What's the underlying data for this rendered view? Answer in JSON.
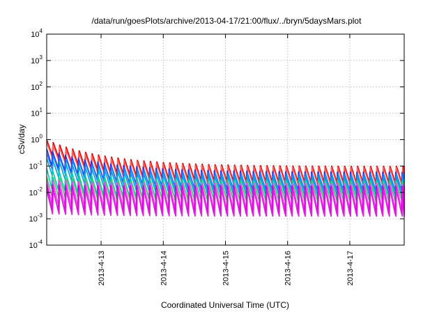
{
  "chart_data": {
    "type": "line",
    "title": "/data/run/goesPlots/archive/2013-04-17/21:00/flux/../bryn/5daysMars.plot",
    "xlabel": "Coordinated Universal Time (UTC)",
    "ylabel": "cSv/day",
    "y_scale": "log",
    "ylim": [
      0.0001,
      10000
    ],
    "y_ticks": [
      {
        "base": "10",
        "exp": "-4",
        "value": 0.0001
      },
      {
        "base": "10",
        "exp": "-3",
        "value": 0.001
      },
      {
        "base": "10",
        "exp": "-2",
        "value": 0.01
      },
      {
        "base": "10",
        "exp": "-1",
        "value": 0.1
      },
      {
        "base": "10",
        "exp": "0",
        "value": 1
      },
      {
        "base": "10",
        "exp": "1",
        "value": 10
      },
      {
        "base": "10",
        "exp": "2",
        "value": 100
      },
      {
        "base": "10",
        "exp": "3",
        "value": 1000
      },
      {
        "base": "10",
        "exp": "4",
        "value": 10000
      }
    ],
    "xlim": [
      "2013-04-12T03:00",
      "2013-04-17T21:00"
    ],
    "x_ticks": [
      {
        "label": "2013-4-13",
        "value": "2013-04-13T00:00"
      },
      {
        "label": "2013-4-14",
        "value": "2013-04-14T00:00"
      },
      {
        "label": "2013-4-15",
        "value": "2013-04-15T00:00"
      },
      {
        "label": "2013-4-16",
        "value": "2013-04-16T00:00"
      },
      {
        "label": "2013-4-17",
        "value": "2013-04-17T00:00"
      }
    ],
    "grid": true,
    "legend": "none",
    "oscillation_period_hours": 2.5,
    "series": [
      {
        "color": "#dd0000",
        "peak_start": 1.0,
        "peak_end": 0.1,
        "trough_start": 0.3,
        "trough_end": 0.02
      },
      {
        "color": "#ff6060",
        "peak_start": 0.8,
        "peak_end": 0.09,
        "trough_start": 0.25,
        "trough_end": 0.018
      },
      {
        "color": "#3030dd",
        "peak_start": 0.45,
        "peak_end": 0.06,
        "trough_start": 0.12,
        "trough_end": 0.012
      },
      {
        "color": "#2080ff",
        "peak_start": 0.3,
        "peak_end": 0.05,
        "trough_start": 0.08,
        "trough_end": 0.009
      },
      {
        "color": "#00a0e0",
        "peak_start": 0.2,
        "peak_end": 0.04,
        "trough_start": 0.05,
        "trough_end": 0.007
      },
      {
        "color": "#00c8b0",
        "peak_start": 0.08,
        "peak_end": 0.03,
        "trough_start": 0.015,
        "trough_end": 0.005
      },
      {
        "color": "#40d060",
        "peak_start": 0.04,
        "peak_end": 0.025,
        "trough_start": 0.006,
        "trough_end": 0.004
      },
      {
        "color": "#ff40ff",
        "peak_start": 0.03,
        "peak_end": 0.022,
        "trough_start": 0.003,
        "trough_end": 0.002
      },
      {
        "color": "#d000d0",
        "peak_start": 0.02,
        "peak_end": 0.018,
        "trough_start": 0.002,
        "trough_end": 0.0015
      },
      {
        "color": "#e020e0",
        "peak_start": 0.012,
        "peak_end": 0.013,
        "trough_start": 0.0015,
        "trough_end": 0.0012
      }
    ]
  }
}
